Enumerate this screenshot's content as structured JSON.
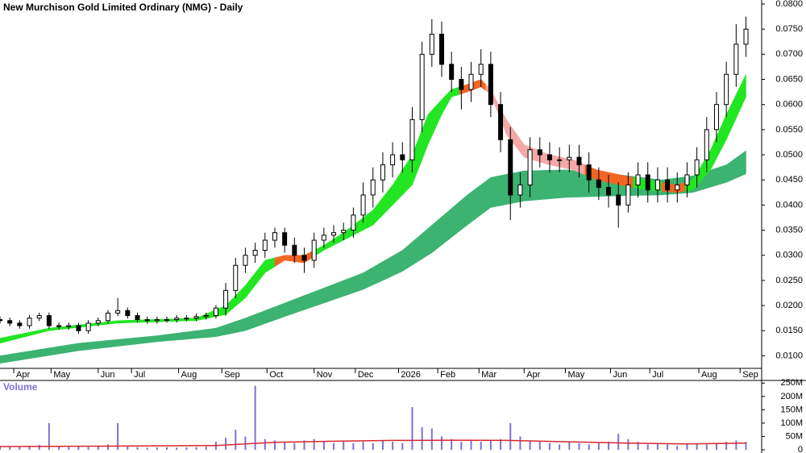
{
  "chart_data": [
    {
      "type": "candlestick",
      "title": "New Murchison Gold Limited Ordinary (NMG) - Daily",
      "x": [
        0,
        5,
        10,
        15,
        20,
        25,
        30,
        35,
        40,
        45,
        50,
        55,
        60,
        65,
        70,
        75,
        80,
        85,
        90,
        95,
        100,
        105,
        110,
        115,
        120,
        125,
        130,
        135,
        140,
        145,
        150,
        155,
        160,
        165,
        170,
        175,
        180,
        185,
        190,
        195,
        200,
        205,
        210,
        215,
        220,
        225,
        230,
        235,
        240,
        245,
        250,
        255,
        260,
        265,
        270,
        275,
        280,
        285,
        290,
        295,
        300,
        305,
        310,
        315,
        320,
        325,
        330,
        335,
        340,
        345,
        350,
        355,
        360,
        365,
        370,
        375,
        380
      ],
      "open": [
        0.0172,
        0.017,
        0.0165,
        0.016,
        0.0175,
        0.018,
        0.016,
        0.0158,
        0.016,
        0.015,
        0.0165,
        0.017,
        0.0185,
        0.019,
        0.018,
        0.0172,
        0.017,
        0.0172,
        0.0172,
        0.0175,
        0.0175,
        0.0178,
        0.018,
        0.0195,
        0.023,
        0.028,
        0.03,
        0.031,
        0.033,
        0.0345,
        0.032,
        0.03,
        0.029,
        0.033,
        0.034,
        0.0345,
        0.035,
        0.038,
        0.042,
        0.045,
        0.048,
        0.05,
        0.049,
        0.057,
        0.07,
        0.074,
        0.068,
        0.065,
        0.063,
        0.066,
        0.068,
        0.06,
        0.053,
        0.042,
        0.044,
        0.051,
        0.05,
        0.049,
        0.049,
        0.0495,
        0.048,
        0.045,
        0.0435,
        0.042,
        0.04,
        0.044,
        0.046,
        0.043,
        0.045,
        0.043,
        0.044,
        0.046,
        0.049,
        0.055,
        0.06,
        0.066,
        0.072
      ],
      "high": [
        0.0178,
        0.0176,
        0.0171,
        0.0181,
        0.0186,
        0.0186,
        0.0166,
        0.0166,
        0.0166,
        0.0171,
        0.0176,
        0.0191,
        0.0215,
        0.0196,
        0.0186,
        0.0178,
        0.0178,
        0.0178,
        0.0181,
        0.0181,
        0.0184,
        0.0186,
        0.0201,
        0.0245,
        0.0295,
        0.0315,
        0.0325,
        0.0345,
        0.0355,
        0.0355,
        0.0335,
        0.0315,
        0.0345,
        0.0355,
        0.036,
        0.0365,
        0.0395,
        0.0445,
        0.0475,
        0.0505,
        0.0525,
        0.0525,
        0.0595,
        0.0725,
        0.077,
        0.0765,
        0.0705,
        0.0675,
        0.0685,
        0.071,
        0.0705,
        0.0625,
        0.0555,
        0.0465,
        0.0535,
        0.0535,
        0.0525,
        0.0515,
        0.052,
        0.052,
        0.0505,
        0.0475,
        0.046,
        0.0445,
        0.0465,
        0.0485,
        0.0485,
        0.0475,
        0.0475,
        0.0465,
        0.0485,
        0.0515,
        0.0575,
        0.0625,
        0.0685,
        0.076,
        0.0775
      ],
      "low": [
        0.0164,
        0.0159,
        0.0154,
        0.0154,
        0.0169,
        0.0154,
        0.0152,
        0.0152,
        0.0144,
        0.0144,
        0.0159,
        0.0164,
        0.0179,
        0.0174,
        0.0166,
        0.0164,
        0.0164,
        0.0166,
        0.0166,
        0.0169,
        0.0169,
        0.0172,
        0.0174,
        0.018,
        0.0215,
        0.0265,
        0.0285,
        0.0295,
        0.0315,
        0.0305,
        0.0285,
        0.0265,
        0.0275,
        0.0315,
        0.0325,
        0.033,
        0.0335,
        0.0365,
        0.0395,
        0.0425,
        0.0455,
        0.0465,
        0.0465,
        0.0545,
        0.0675,
        0.0655,
        0.0625,
        0.059,
        0.0605,
        0.0635,
        0.0575,
        0.0505,
        0.037,
        0.0395,
        0.0415,
        0.0475,
        0.0465,
        0.0465,
        0.0465,
        0.0455,
        0.0425,
        0.041,
        0.0395,
        0.0355,
        0.0385,
        0.0415,
        0.0405,
        0.0405,
        0.0405,
        0.0405,
        0.0415,
        0.0435,
        0.0465,
        0.0525,
        0.0575,
        0.0635,
        0.0695
      ],
      "close": [
        0.017,
        0.0165,
        0.016,
        0.0175,
        0.018,
        0.016,
        0.0158,
        0.016,
        0.015,
        0.0165,
        0.017,
        0.0185,
        0.019,
        0.018,
        0.0172,
        0.017,
        0.0172,
        0.0172,
        0.0175,
        0.0175,
        0.0178,
        0.018,
        0.0195,
        0.023,
        0.028,
        0.03,
        0.031,
        0.033,
        0.0345,
        0.032,
        0.03,
        0.029,
        0.033,
        0.034,
        0.0345,
        0.035,
        0.038,
        0.042,
        0.045,
        0.048,
        0.05,
        0.049,
        0.057,
        0.07,
        0.074,
        0.068,
        0.065,
        0.063,
        0.066,
        0.068,
        0.06,
        0.053,
        0.042,
        0.044,
        0.051,
        0.05,
        0.049,
        0.049,
        0.0495,
        0.048,
        0.045,
        0.0435,
        0.042,
        0.04,
        0.044,
        0.046,
        0.043,
        0.045,
        0.043,
        0.044,
        0.046,
        0.049,
        0.055,
        0.06,
        0.066,
        0.072,
        0.075
      ],
      "bands": [
        {
          "color": "#3cb371",
          "x": [
            0,
            40,
            80,
            110,
            125,
            145,
            165,
            185,
            205,
            220,
            238,
            250,
            267,
            288,
            312,
            337,
            353,
            370,
            380
          ],
          "upper": [
            0.01,
            0.0125,
            0.014,
            0.0155,
            0.0175,
            0.0205,
            0.0235,
            0.0265,
            0.031,
            0.036,
            0.042,
            0.0455,
            0.0468,
            0.047,
            0.0462,
            0.045,
            0.0458,
            0.048,
            0.0508
          ],
          "lower": [
            0.0085,
            0.011,
            0.0128,
            0.0138,
            0.015,
            0.0178,
            0.0205,
            0.0232,
            0.0268,
            0.0305,
            0.036,
            0.0395,
            0.0408,
            0.0415,
            0.0418,
            0.042,
            0.0425,
            0.0445,
            0.0462
          ]
        },
        {
          "x": [
            0,
            25,
            60,
            100,
            115,
            125,
            135,
            145,
            155,
            165,
            175,
            190,
            200,
            210,
            218,
            225,
            230,
            238,
            245,
            250,
            258,
            267,
            280,
            292,
            304,
            316,
            329,
            345,
            353,
            362,
            370,
            380
          ],
          "upper": [
            0.0135,
            0.0155,
            0.017,
            0.0175,
            0.02,
            0.024,
            0.029,
            0.03,
            0.03,
            0.032,
            0.0345,
            0.039,
            0.044,
            0.05,
            0.058,
            0.061,
            0.063,
            0.064,
            0.065,
            0.063,
            0.057,
            0.052,
            0.05,
            0.049,
            0.047,
            0.046,
            0.045,
            0.044,
            0.045,
            0.051,
            0.058,
            0.066
          ],
          "lower": [
            0.0125,
            0.015,
            0.0165,
            0.017,
            0.0182,
            0.0215,
            0.0265,
            0.029,
            0.0285,
            0.031,
            0.033,
            0.036,
            0.04,
            0.044,
            0.052,
            0.058,
            0.0615,
            0.0625,
            0.0635,
            0.062,
            0.054,
            0.0495,
            0.048,
            0.047,
            0.045,
            0.044,
            0.043,
            0.0425,
            0.043,
            0.047,
            0.053,
            0.0615
          ],
          "colors": [
            "#22e622",
            "#22e622",
            "#22e622",
            "#22e622",
            "#22e622",
            "#22e622",
            "#22e622",
            "#f26522",
            "#f26522",
            "#22e622",
            "#22e622",
            "#22e622",
            "#22e622",
            "#22e622",
            "#22e622",
            "#22e622",
            "#22e622",
            "#f26522",
            "#f26522",
            "#f4a8a8",
            "#f4a8a8",
            "#f4a8a8",
            "#f4a8a8",
            "#f4a8a8",
            "#f26522",
            "#f26522",
            "#22e622",
            "#f26522",
            "#22e622",
            "#22e622",
            "#22e622",
            "#22e622"
          ]
        }
      ],
      "xlim": [
        0,
        388
      ],
      "xticks": [
        {
          "value": 7,
          "label": "Apr"
        },
        {
          "value": 26,
          "label": "May"
        },
        {
          "value": 50,
          "label": "Jun"
        },
        {
          "value": 67,
          "label": "Jul"
        },
        {
          "value": 91,
          "label": "Aug"
        },
        {
          "value": 113,
          "label": "Sep"
        },
        {
          "value": 136,
          "label": "Oct"
        },
        {
          "value": 160,
          "label": "Nov"
        },
        {
          "value": 181,
          "label": "Dec"
        },
        {
          "value": 203,
          "label": "2026"
        },
        {
          "value": 223,
          "label": "Feb"
        },
        {
          "value": 244,
          "label": "Mar"
        },
        {
          "value": 267,
          "label": "Apr"
        },
        {
          "value": 288,
          "label": "May"
        },
        {
          "value": 311,
          "label": "Jun"
        },
        {
          "value": 331,
          "label": "Jul"
        },
        {
          "value": 356,
          "label": "Aug"
        },
        {
          "value": 377,
          "label": "Sep"
        }
      ],
      "ylim": [
        0.0075,
        0.0808
      ],
      "yticks": [
        {
          "value": 0.01,
          "label": "0.0100"
        },
        {
          "value": 0.015,
          "label": "0.0150"
        },
        {
          "value": 0.02,
          "label": "0.0200"
        },
        {
          "value": 0.025,
          "label": "0.0250"
        },
        {
          "value": 0.03,
          "label": "0.0300"
        },
        {
          "value": 0.035,
          "label": "0.0350"
        },
        {
          "value": 0.04,
          "label": "0.0400"
        },
        {
          "value": 0.045,
          "label": "0.0450"
        },
        {
          "value": 0.05,
          "label": "0.0500"
        },
        {
          "value": 0.055,
          "label": "0.0550"
        },
        {
          "value": 0.06,
          "label": "0.0600"
        },
        {
          "value": 0.065,
          "label": "0.0650"
        },
        {
          "value": 0.07,
          "label": "0.0700"
        },
        {
          "value": 0.075,
          "label": "0.0750"
        },
        {
          "value": 0.08,
          "label": "0.0800"
        }
      ]
    },
    {
      "type": "bar",
      "title": "Volume",
      "color": "#7b72d8",
      "x": [
        0,
        5,
        10,
        15,
        20,
        25,
        30,
        35,
        40,
        45,
        50,
        55,
        60,
        65,
        70,
        75,
        80,
        85,
        90,
        95,
        100,
        105,
        110,
        115,
        120,
        125,
        130,
        135,
        140,
        145,
        150,
        155,
        160,
        165,
        170,
        175,
        180,
        185,
        190,
        195,
        200,
        205,
        210,
        215,
        220,
        225,
        230,
        235,
        240,
        245,
        250,
        255,
        260,
        265,
        270,
        275,
        280,
        285,
        290,
        295,
        300,
        305,
        310,
        315,
        320,
        325,
        330,
        335,
        340,
        345,
        350,
        355,
        360,
        365,
        370,
        375,
        380
      ],
      "values": [
        15,
        12,
        10,
        14,
        18,
        100,
        12,
        10,
        12,
        10,
        14,
        20,
        100,
        15,
        10,
        8,
        9,
        10,
        8,
        9,
        10,
        12,
        30,
        45,
        75,
        50,
        240,
        40,
        35,
        30,
        25,
        35,
        40,
        30,
        25,
        30,
        25,
        30,
        25,
        35,
        30,
        25,
        160,
        85,
        80,
        50,
        40,
        30,
        35,
        30,
        35,
        40,
        100,
        50,
        35,
        30,
        25,
        20,
        30,
        25,
        20,
        25,
        30,
        60,
        40,
        30,
        20,
        25,
        20,
        15,
        20,
        25,
        20,
        25,
        30,
        35,
        30
      ],
      "line": {
        "color": "#d9262b",
        "x": [
          0,
          60,
          110,
          140,
          170,
          200,
          230,
          260,
          290,
          320,
          350,
          380
        ],
        "values": [
          12,
          14,
          16,
          28,
          32,
          35,
          36,
          35,
          30,
          25,
          22,
          25
        ]
      },
      "xlim": [
        0,
        388
      ],
      "ylim": [
        0,
        260
      ],
      "yticks": [
        0,
        {
          "value": 50,
          "label": "50M"
        },
        {
          "value": 100,
          "label": "100M"
        },
        {
          "value": 150,
          "label": "150M"
        },
        {
          "value": 200,
          "label": "200M"
        },
        {
          "value": 250,
          "label": "250M"
        }
      ]
    }
  ]
}
